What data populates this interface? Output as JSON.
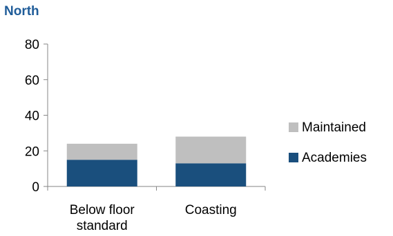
{
  "chart_data": {
    "type": "bar",
    "stacked": true,
    "title": "North",
    "categories": [
      "Below floor standard",
      "Coasting"
    ],
    "category_lines": [
      [
        "Below floor",
        "standard"
      ],
      [
        "Coasting"
      ]
    ],
    "series": [
      {
        "name": "Academies",
        "values": [
          15,
          13
        ],
        "color": "#1a4f7d"
      },
      {
        "name": "Maintained",
        "values": [
          9,
          15
        ],
        "color": "#bfbfbf"
      }
    ],
    "ylim": [
      0,
      80
    ],
    "yticks": [
      0,
      20,
      40,
      60,
      80
    ],
    "grid": false,
    "legend": "right"
  }
}
